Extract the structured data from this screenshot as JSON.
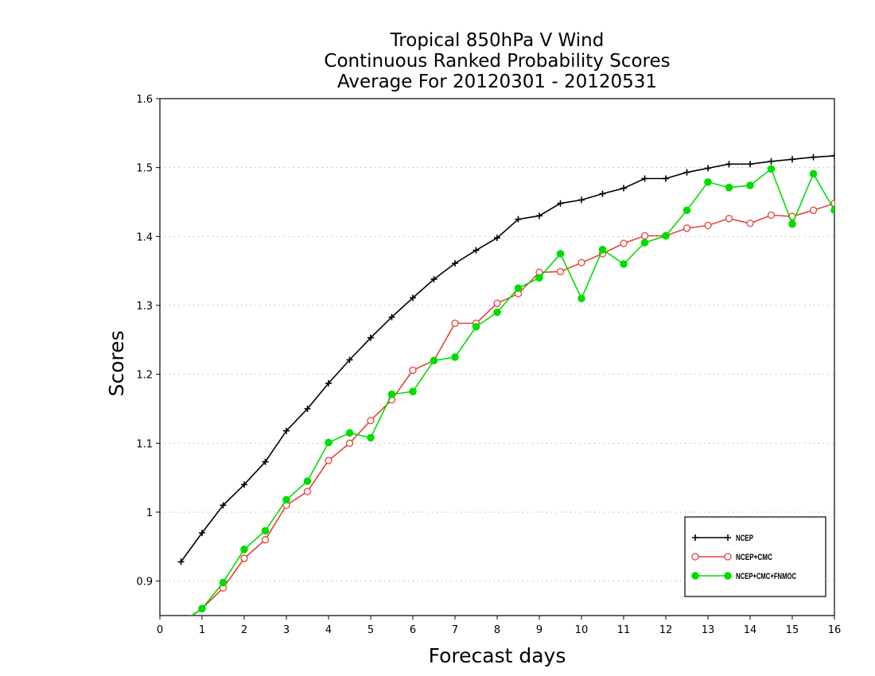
{
  "chart_data": {
    "type": "line",
    "title_lines": [
      "Tropical 850hPa V Wind",
      "Continuous Ranked Probability Scores",
      "Average For 20120301 - 20120531"
    ],
    "xlabel": "Forecast days",
    "ylabel": "Scores",
    "xlim": [
      0,
      16
    ],
    "ylim": [
      0.85,
      1.6
    ],
    "x_ticks": [
      "0",
      "1",
      "2",
      "3",
      "4",
      "5",
      "6",
      "7",
      "8",
      "9",
      "10",
      "11",
      "12",
      "13",
      "14",
      "15",
      "16"
    ],
    "y_ticks": [
      "0.9",
      "1",
      "1.1",
      "1.2",
      "1.3",
      "1.4",
      "1.5",
      "1.6"
    ],
    "grid": "horizontal dotted",
    "legend_position": "bottom-right",
    "x": [
      0.5,
      1,
      1.5,
      2,
      2.5,
      3,
      3.5,
      4,
      4.5,
      5,
      5.5,
      6,
      6.5,
      7,
      7.5,
      8,
      8.5,
      9,
      9.5,
      10,
      10.5,
      11,
      11.5,
      12,
      12.5,
      13,
      13.5,
      14,
      14.5,
      15,
      15.5,
      16
    ],
    "series": [
      {
        "name": "NCEP",
        "color": "#000000",
        "marker": "plus",
        "values": [
          0.928,
          0.97,
          1.01,
          1.04,
          1.073,
          1.118,
          1.15,
          1.187,
          1.221,
          1.253,
          1.283,
          1.311,
          1.338,
          1.361,
          1.38,
          1.398,
          1.425,
          1.43,
          1.448,
          1.453,
          1.462,
          1.47,
          1.484,
          1.484,
          1.493,
          1.499,
          1.505,
          1.505,
          1.509,
          1.512,
          1.515,
          1.517
        ]
      },
      {
        "name": "NCEP+CMC",
        "color": "#e8403c",
        "marker": "open-circle",
        "values": [
          0.838,
          0.86,
          0.89,
          0.933,
          0.96,
          1.01,
          1.03,
          1.075,
          1.1,
          1.133,
          1.163,
          1.206,
          1.22,
          1.274,
          1.274,
          1.303,
          1.317,
          1.348,
          1.349,
          1.362,
          1.375,
          1.39,
          1.401,
          1.401,
          1.412,
          1.416,
          1.426,
          1.419,
          1.431,
          1.429,
          1.438,
          1.448
        ]
      },
      {
        "name": "NCEP+CMC+FNMOC",
        "color": "#00dd00",
        "marker": "filled-circle",
        "values": [
          0.84,
          0.86,
          0.898,
          0.946,
          0.973,
          1.018,
          1.045,
          1.101,
          1.115,
          1.108,
          1.171,
          1.175,
          1.22,
          1.225,
          1.269,
          1.29,
          1.325,
          1.34,
          1.375,
          1.31,
          1.381,
          1.36,
          1.391,
          1.401,
          1.438,
          1.479,
          1.471,
          1.474,
          1.498,
          1.418,
          1.491,
          1.438
        ]
      }
    ]
  }
}
